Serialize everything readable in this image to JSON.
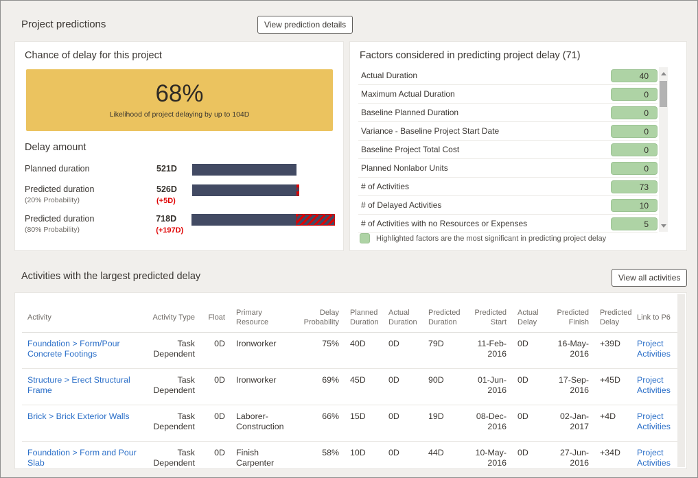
{
  "header": {
    "title": "Project predictions",
    "details_button": "View prediction details"
  },
  "chance": {
    "title": "Chance of delay for this project",
    "percent": "68%",
    "subtitle": "Likelihood of project delaying by up to 104D"
  },
  "delay_amount": {
    "title": "Delay amount",
    "bars": [
      {
        "label": "Planned duration",
        "sublabel": "",
        "value_label": "521D",
        "delta_label": "",
        "days": 521,
        "delta_days": 0
      },
      {
        "label": "Predicted duration",
        "sublabel": "(20% Probability)",
        "value_label": "526D",
        "delta_label": "(+5D)",
        "days": 526,
        "delta_days": 5
      },
      {
        "label": "Predicted duration",
        "sublabel": "(80% Probability)",
        "value_label": "718D",
        "delta_label": "(+197D)",
        "days": 718,
        "delta_days": 197
      }
    ]
  },
  "factors": {
    "title": "Factors considered in predicting project delay (71)",
    "legend": "Highlighted factors are the most significant in predicting project delay",
    "items": [
      {
        "label": "Actual Duration",
        "value": "40"
      },
      {
        "label": "Maximum Actual Duration",
        "value": "0"
      },
      {
        "label": "Baseline Planned Duration",
        "value": "0"
      },
      {
        "label": "Variance - Baseline Project Start Date",
        "value": "0"
      },
      {
        "label": "Baseline Project Total Cost",
        "value": "0"
      },
      {
        "label": "Planned Nonlabor Units",
        "value": "0"
      },
      {
        "label": "# of Activities",
        "value": "73"
      },
      {
        "label": "# of Delayed Activities",
        "value": "10"
      },
      {
        "label": "# of Activities with no Resources or Expenses",
        "value": "5"
      }
    ]
  },
  "activities": {
    "title": "Activities with the largest predicted delay",
    "view_all_button": "View all activities",
    "columns": [
      "Activity",
      "Activity Type",
      "Float",
      "Primary Resource",
      "Delay Probability",
      "Planned Duration",
      "Actual Duration",
      "Predicted Duration",
      "Predicted Start",
      "Actual Delay",
      "Predicted Finish",
      "Predicted Delay",
      "Link to P6"
    ],
    "rows": [
      {
        "cells": [
          "Foundation > Form/Pour Concrete Footings",
          "Task Dependent",
          "0D",
          "Ironworker",
          "75%",
          "40D",
          "0D",
          "79D",
          "11-Feb-2016",
          "0D",
          "16-May-2016",
          "+39D",
          "Project Activities"
        ]
      },
      {
        "cells": [
          "Structure > Erect Structural Frame",
          "Task Dependent",
          "0D",
          "Ironworker",
          "69%",
          "45D",
          "0D",
          "90D",
          "01-Jun-2016",
          "0D",
          "17-Sep-2016",
          "+45D",
          "Project Activities"
        ]
      },
      {
        "cells": [
          "Brick > Brick Exterior Walls",
          "Task Dependent",
          "0D",
          "Laborer-Construction",
          "66%",
          "15D",
          "0D",
          "19D",
          "08-Dec-2016",
          "0D",
          "02-Jan-2017",
          "+4D",
          "Project Activities"
        ]
      },
      {
        "cells": [
          "Foundation > Form and Pour Slab",
          "Task Dependent",
          "0D",
          "Finish Carpenter",
          "58%",
          "10D",
          "0D",
          "44D",
          "10-May-2016",
          "0D",
          "27-Jun-2016",
          "+34D",
          "Project Activities"
        ]
      }
    ]
  },
  "colors": {
    "accent_yellow": "#ebc35f",
    "bar_navy": "#424a63",
    "delta_red": "#e00000",
    "factor_green": "#aed3a5",
    "factor_green_border": "#9bc292",
    "link_blue": "#2b6fc8"
  }
}
